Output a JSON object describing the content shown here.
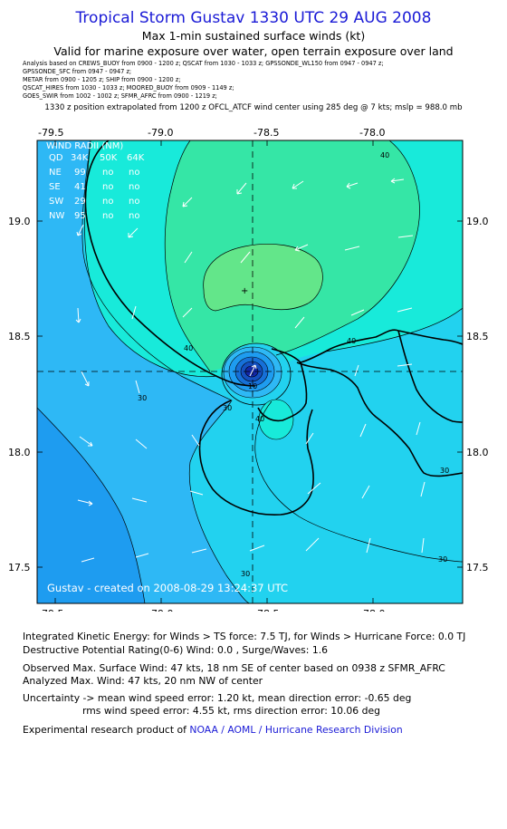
{
  "title": "Tropical Storm Gustav 1330 UTC 29 AUG 2008",
  "subtitle1": "Max 1-min sustained surface winds (kt)",
  "subtitle2": "Valid for marine exposure over water, open terrain exposure over land",
  "analysis_lines": [
    "Analysis based on  CREWS_BUOY from 0900 - 1200 z;  QSCAT from 1030 - 1033 z;  GPSSONDE_WL150 from 0947 - 0947 z;",
    "GPSSONDE_SFC from 0947 - 0947 z;",
    "METAR from 0900 - 1205 z;  SHIP from 0900 - 1200 z;",
    "QSCAT_HIRES from 1030 - 1033 z;  MOORED_BUOY from 0909 - 1149 z;",
    "GOES_SWIR from 1002 - 1002 z;  SFMR_AFRC from 0900 - 1219 z;"
  ],
  "position_line": "1330 z position extrapolated from 1200 z OFCL_ATCF wind center using 285 deg @ 7 kts; mslp = 988.0 mb",
  "map": {
    "x_ticks": [
      "-79.5",
      "-79.0",
      "-78.5",
      "-78.0"
    ],
    "y_ticks": [
      "19.0",
      "18.5",
      "18.0",
      "17.5"
    ],
    "wind_radii": {
      "header": [
        "WIND RADII (NM)"
      ],
      "columns": [
        "QD",
        "34K",
        "50K",
        "64K"
      ],
      "rows": [
        [
          "NE",
          "99",
          "no",
          "no"
        ],
        [
          "SE",
          "41",
          "no",
          "no"
        ],
        [
          "SW",
          "29",
          "no",
          "no"
        ],
        [
          "NW",
          "95",
          "no",
          "no"
        ]
      ]
    },
    "contour_labels": [
      "40",
      "40",
      "40",
      "40",
      "30",
      "30",
      "30",
      "30",
      "30",
      "10"
    ],
    "credit": "Gustav - created on 2008-08-29 13:24:37 UTC",
    "colors": {
      "sea_20": "#1e9cf0",
      "sea_25": "#2eb8f5",
      "sea_30": "#22d2ef",
      "sea_35": "#18eada",
      "sea_40": "#35e6a6",
      "sea_45": "#63e68a",
      "core_dark": "#1228a8"
    }
  },
  "footer": {
    "ike": "Integrated Kinetic Energy:  for Winds > TS force: 7.5 TJ,  for Winds > Hurricane Force: 0.0 TJ",
    "dpr": "Destructive Potential Rating(0-6)   Wind: 0.0 , Surge/Waves: 1.6",
    "obs": "Observed Max. Surface Wind: 47 kts, 18 nm SE of center based on 0938 z SFMR_AFRC",
    "anl": "Analyzed Max. Wind: 47 kts, 20 nm NW of center",
    "unc1": "Uncertainty -> mean wind speed error: 1.20 kt,   mean direction error:  -0.65 deg",
    "unc2": "rms wind speed error: 4.55 kt,   rms direction error: 10.06 deg",
    "credit_prefix": "Experimental research product of ",
    "credit_org": "NOAA / AOML / Hurricane Research Division"
  }
}
